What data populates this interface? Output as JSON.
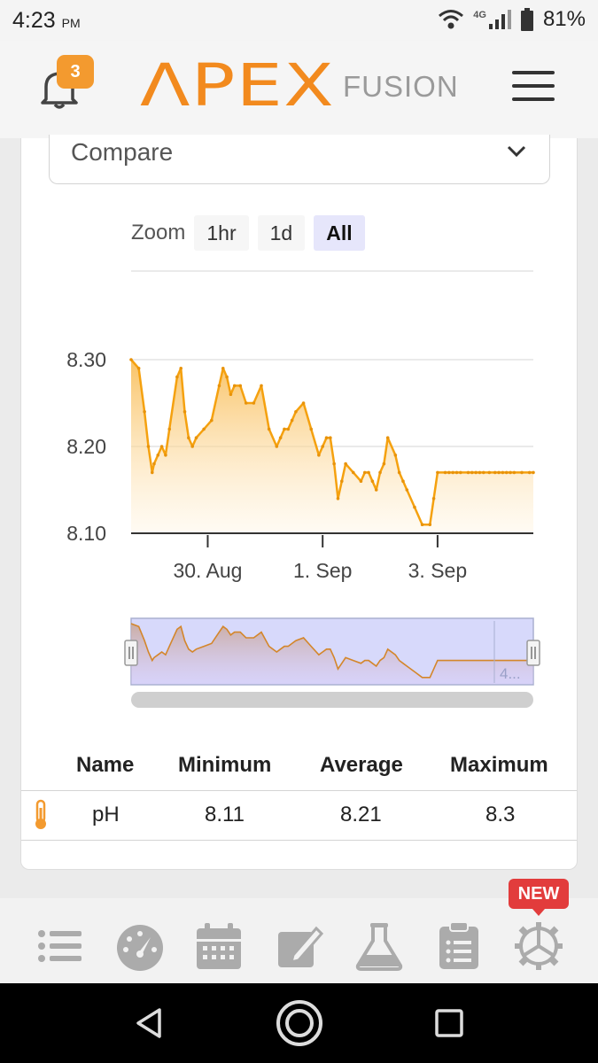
{
  "status_bar": {
    "time": "4:23",
    "ampm": "PM",
    "network": "4G",
    "battery": "81%"
  },
  "header": {
    "notification_count": "3",
    "logo_main": "ΛPEX",
    "logo_sub": "FUSION"
  },
  "compare": {
    "label": "Compare"
  },
  "zoom": {
    "label": "Zoom",
    "options": [
      "1hr",
      "1d",
      "All"
    ],
    "selected": "All"
  },
  "chart_data": {
    "type": "area",
    "series": [
      {
        "x": [
          0,
          0.2,
          0.35,
          0.45,
          0.55,
          0.6,
          0.7,
          0.8,
          0.9,
          1.0,
          1.2,
          1.3,
          1.4,
          1.5,
          1.6,
          1.7,
          1.9,
          2.1,
          2.3,
          2.4,
          2.5,
          2.6,
          2.7,
          2.85,
          3.0,
          3.2,
          3.4,
          3.6,
          3.8,
          3.9,
          4.0,
          4.1,
          4.2,
          4.3,
          4.5,
          4.7,
          4.9,
          5.0,
          5.1,
          5.2,
          5.3,
          5.4,
          5.5,
          5.6,
          5.8,
          6.0,
          6.1,
          6.2,
          6.3,
          6.4,
          6.5,
          6.6,
          6.7,
          6.9,
          7.0,
          7.1,
          7.2,
          7.4,
          7.6,
          7.8,
          7.9,
          8.0,
          8.2,
          8.3,
          8.4,
          8.5,
          8.6,
          8.8,
          8.9,
          9.0,
          9.1,
          9.2,
          9.35,
          9.5,
          9.6,
          9.7,
          9.8,
          9.9,
          10.0,
          10.2,
          10.4,
          10.5
        ],
        "values": [
          8.3,
          8.29,
          8.24,
          8.2,
          8.17,
          8.18,
          8.19,
          8.2,
          8.19,
          8.22,
          8.28,
          8.29,
          8.24,
          8.21,
          8.2,
          8.21,
          8.22,
          8.23,
          8.27,
          8.29,
          8.28,
          8.26,
          8.27,
          8.27,
          8.25,
          8.25,
          8.27,
          8.22,
          8.2,
          8.21,
          8.22,
          8.22,
          8.23,
          8.24,
          8.25,
          8.22,
          8.19,
          8.2,
          8.21,
          8.21,
          8.18,
          8.14,
          8.16,
          8.18,
          8.17,
          8.16,
          8.17,
          8.17,
          8.16,
          8.15,
          8.17,
          8.18,
          8.21,
          8.19,
          8.17,
          8.16,
          8.15,
          8.13,
          8.11,
          8.11,
          8.14,
          8.17,
          8.17,
          8.17,
          8.17,
          8.17,
          8.17,
          8.17,
          8.17,
          8.17,
          8.17,
          8.17,
          8.17,
          8.17,
          8.17,
          8.17,
          8.17,
          8.17,
          8.17,
          8.17,
          8.17,
          8.17
        ]
      }
    ],
    "x_ticks": [
      {
        "x": 2.0,
        "label": "30. Aug"
      },
      {
        "x": 5.0,
        "label": "1. Sep"
      },
      {
        "x": 8.0,
        "label": "3. Sep"
      }
    ],
    "y_ticks": [
      "8.30",
      "8.20",
      "8.10"
    ],
    "ylim": [
      8.1,
      8.3
    ],
    "xlim": [
      0,
      10.5
    ],
    "navigator_label": "4..."
  },
  "stats": {
    "headers": [
      "Name",
      "Minimum",
      "Average",
      "Maximum"
    ],
    "row": {
      "name": "pH",
      "min": "8.11",
      "avg": "8.21",
      "max": "8.3"
    }
  },
  "bottom_nav": {
    "new_label": "NEW"
  }
}
